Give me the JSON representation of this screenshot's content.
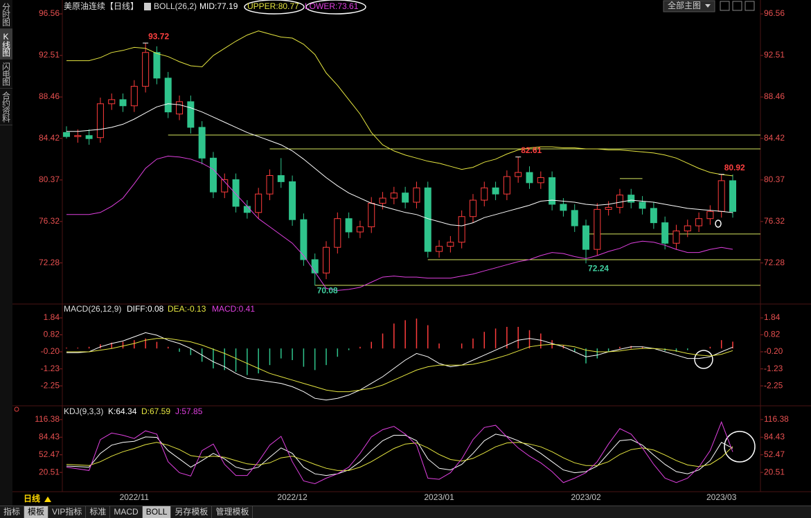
{
  "sidebar": {
    "items": [
      "分时图",
      "K线图",
      "闪电图",
      "合约资料"
    ],
    "selected": 1
  },
  "toolbar": {
    "main_menu": "全部主图"
  },
  "period": "日线",
  "tabs": {
    "items": [
      "指标",
      "模板",
      "VIP指标",
      "标准",
      "MACD",
      "BOLL",
      "另存模板",
      "管理模板"
    ],
    "selected": [
      1,
      5
    ]
  },
  "chart_data": [
    {
      "type": "candlestick",
      "title": "美原油连续【日线】",
      "indicator": "BOLL(26,2)",
      "categories": [
        null,
        null,
        null,
        null,
        null,
        null,
        "2022/11",
        null,
        null,
        null,
        null,
        null,
        null,
        null,
        null,
        null,
        null,
        null,
        null,
        null,
        "2022/12",
        null,
        null,
        null,
        null,
        null,
        null,
        null,
        null,
        null,
        null,
        null,
        null,
        "2023/01",
        null,
        null,
        null,
        null,
        null,
        null,
        null,
        null,
        null,
        null,
        null,
        null,
        "2023/02",
        null,
        null,
        null,
        null,
        null,
        null,
        null,
        null,
        null,
        null,
        null,
        "2023/03",
        null
      ],
      "open": [
        85.0,
        84.6,
        84.7,
        84.5,
        87.8,
        88.2,
        87.6,
        89.5,
        92.8,
        90.3,
        86.8,
        88.0,
        85.5,
        82.5,
        79.2,
        80.4,
        77.8,
        77.2,
        79.0,
        80.8,
        80.2,
        76.5,
        72.6,
        71.3,
        73.8,
        76.6,
        75.3,
        75.8,
        78.1,
        78.6,
        79.1,
        78.2,
        79.6,
        73.4,
        73.9,
        74.3,
        76.8,
        78.4,
        79.6,
        79.0,
        80.7,
        81.1,
        80.1,
        80.6,
        78.0,
        77.4,
        75.9,
        73.6,
        77.5,
        77.7,
        78.9,
        78.2,
        77.6,
        76.2,
        74.2,
        75.4,
        75.9,
        76.6,
        77.3,
        80.3
      ],
      "high": [
        85.6,
        85.3,
        85.3,
        88.4,
        88.8,
        88.8,
        90.1,
        93.72,
        93.4,
        90.9,
        88.6,
        88.6,
        86.1,
        83.1,
        81.0,
        81.0,
        78.4,
        79.6,
        81.4,
        82.5,
        80.8,
        77.1,
        73.2,
        74.4,
        77.2,
        77.2,
        76.4,
        78.7,
        79.2,
        79.7,
        79.7,
        80.2,
        80.2,
        74.5,
        74.9,
        77.4,
        79.0,
        80.2,
        80.2,
        81.3,
        82.61,
        81.7,
        81.2,
        81.2,
        78.6,
        78.0,
        76.5,
        78.1,
        78.3,
        79.5,
        79.5,
        78.8,
        78.2,
        76.8,
        76.0,
        76.5,
        77.2,
        77.9,
        80.92,
        80.9
      ],
      "low": [
        84.4,
        84.0,
        83.8,
        84.0,
        87.2,
        87.0,
        87.0,
        88.9,
        89.7,
        86.4,
        86.2,
        84.9,
        81.9,
        78.6,
        78.6,
        77.2,
        76.6,
        76.6,
        78.4,
        79.6,
        75.9,
        72.0,
        70.08,
        70.7,
        73.2,
        74.7,
        74.7,
        75.2,
        77.5,
        78.0,
        77.6,
        77.6,
        72.8,
        72.8,
        73.3,
        73.7,
        76.2,
        77.8,
        78.4,
        78.4,
        80.1,
        79.5,
        79.5,
        77.4,
        76.8,
        75.3,
        72.24,
        73.0,
        76.9,
        77.1,
        77.6,
        77.0,
        75.6,
        73.6,
        73.6,
        74.8,
        75.3,
        76.0,
        76.7,
        76.7
      ],
      "close": [
        84.6,
        84.7,
        84.4,
        87.8,
        88.2,
        87.6,
        89.5,
        92.8,
        90.3,
        87.0,
        88.0,
        85.5,
        82.5,
        79.2,
        80.4,
        77.8,
        77.2,
        79.0,
        80.8,
        80.2,
        76.5,
        72.6,
        71.3,
        73.8,
        76.6,
        75.3,
        75.8,
        78.1,
        78.6,
        79.1,
        78.2,
        79.6,
        73.4,
        73.9,
        74.3,
        76.8,
        78.4,
        79.6,
        79.0,
        80.7,
        81.1,
        80.1,
        80.6,
        78.0,
        77.4,
        75.9,
        73.6,
        77.5,
        77.7,
        78.9,
        78.2,
        77.6,
        76.2,
        74.2,
        75.4,
        75.9,
        76.6,
        77.3,
        80.3,
        77.3
      ],
      "up_color": "#ff3c3c",
      "down_color": "#2fc48c",
      "series": [
        {
          "name": "MID:",
          "color": "#ffffff",
          "values": [
            85.1,
            85.1,
            85.2,
            85.3,
            85.5,
            85.8,
            86.3,
            86.9,
            87.5,
            87.8,
            87.7,
            87.4,
            87.0,
            86.5,
            86.0,
            85.5,
            85.0,
            84.6,
            84.2,
            83.8,
            83.2,
            82.4,
            81.5,
            80.6,
            79.8,
            79.1,
            78.6,
            78.1,
            77.8,
            77.5,
            77.2,
            77.0,
            76.6,
            76.3,
            76.0,
            75.9,
            76.2,
            76.7,
            77.0,
            77.3,
            77.6,
            77.9,
            78.3,
            78.4,
            78.3,
            78.2,
            78.0,
            77.9,
            78.0,
            78.2,
            78.4,
            78.3,
            78.2,
            78.0,
            77.8,
            77.6,
            77.5,
            77.4,
            77.3,
            77.19
          ]
        },
        {
          "name": "UPPER:",
          "color": "#e6e640",
          "values": [
            92.0,
            92.0,
            92.0,
            92.3,
            92.8,
            93.0,
            93.3,
            93.2,
            92.7,
            92.4,
            91.9,
            91.5,
            91.4,
            92.5,
            93.2,
            93.9,
            94.5,
            94.9,
            94.6,
            94.3,
            94.2,
            93.6,
            92.6,
            90.8,
            89.6,
            88.2,
            86.8,
            85.0,
            83.8,
            83.2,
            82.8,
            82.5,
            82.2,
            82.0,
            81.7,
            81.4,
            81.6,
            82.1,
            82.4,
            82.9,
            83.3,
            83.5,
            83.6,
            83.6,
            83.5,
            83.5,
            83.4,
            83.4,
            83.3,
            83.3,
            83.2,
            83.1,
            83.0,
            82.8,
            82.5,
            82.0,
            81.5,
            81.1,
            80.9,
            80.77
          ]
        },
        {
          "name": "LOWER:",
          "color": "#e040e0",
          "values": [
            77.0,
            77.0,
            77.0,
            77.2,
            77.8,
            78.6,
            80.0,
            81.5,
            82.4,
            82.7,
            82.6,
            82.4,
            82.0,
            81.4,
            80.2,
            79.0,
            77.8,
            76.6,
            75.8,
            75.0,
            74.2,
            73.0,
            71.4,
            69.8,
            69.6,
            69.7,
            69.9,
            70.4,
            70.9,
            71.0,
            70.9,
            70.9,
            70.8,
            70.8,
            70.8,
            71.0,
            71.2,
            71.5,
            71.8,
            72.1,
            72.4,
            72.6,
            73.0,
            73.3,
            73.2,
            72.9,
            72.7,
            73.0,
            73.4,
            73.7,
            74.2,
            74.4,
            74.3,
            74.0,
            73.6,
            73.3,
            73.3,
            73.6,
            73.8,
            73.61
          ]
        }
      ],
      "levels": [
        {
          "value": 84.75,
          "from": 9
        },
        {
          "value": 83.4,
          "from": 18
        },
        {
          "value": 80.5,
          "from": 49,
          "to": 51
        },
        {
          "value": 75.1,
          "from": 46
        },
        {
          "value": 72.6,
          "from": 32
        },
        {
          "value": 70.1,
          "from": 22
        }
      ],
      "level_color": "#d8e860",
      "high_labels": [
        7,
        40,
        58
      ],
      "low_labels": [
        22,
        46
      ],
      "ylim": [
        68.41,
        97.24
      ],
      "yticks": [
        96.56,
        92.51,
        88.46,
        84.42,
        80.37,
        76.32,
        72.28
      ]
    },
    {
      "type": "macd",
      "indicator": "MACD(26,12,9)",
      "series": [
        {
          "name": "DIFF:",
          "color": "#ffffff",
          "values": [
            -0.25,
            -0.25,
            -0.2,
            0.1,
            0.3,
            0.45,
            0.7,
            0.95,
            0.8,
            0.5,
            0.3,
            0.0,
            -0.4,
            -0.8,
            -1.1,
            -1.5,
            -1.8,
            -1.9,
            -2.0,
            -2.1,
            -2.3,
            -2.6,
            -3.0,
            -3.1,
            -3.0,
            -2.8,
            -2.5,
            -2.1,
            -1.7,
            -1.2,
            -0.7,
            -0.3,
            -0.5,
            -0.9,
            -1.1,
            -1.0,
            -0.7,
            -0.4,
            -0.1,
            0.2,
            0.5,
            0.6,
            0.5,
            0.3,
            0.1,
            -0.2,
            -0.5,
            -0.4,
            -0.2,
            -0.05,
            0.1,
            0.1,
            0.0,
            -0.2,
            -0.4,
            -0.6,
            -0.6,
            -0.5,
            -0.2,
            0.08
          ]
        },
        {
          "name": "DEA:",
          "color": "#e6e640",
          "values": [
            -0.2,
            -0.2,
            -0.2,
            -0.1,
            0.0,
            0.15,
            0.3,
            0.5,
            0.6,
            0.6,
            0.5,
            0.4,
            0.2,
            -0.05,
            -0.3,
            -0.6,
            -0.9,
            -1.2,
            -1.5,
            -1.7,
            -1.9,
            -2.1,
            -2.3,
            -2.5,
            -2.6,
            -2.6,
            -2.5,
            -2.4,
            -2.2,
            -1.9,
            -1.6,
            -1.3,
            -1.1,
            -1.0,
            -1.0,
            -1.0,
            -0.95,
            -0.8,
            -0.6,
            -0.4,
            -0.15,
            0.1,
            0.2,
            0.25,
            0.2,
            0.1,
            -0.1,
            -0.2,
            -0.2,
            -0.15,
            -0.05,
            0.0,
            0.0,
            -0.05,
            -0.15,
            -0.3,
            -0.4,
            -0.45,
            -0.35,
            -0.13
          ]
        }
      ],
      "bars": {
        "name": "MACD:",
        "color": "#e040e0",
        "up_color": "#ff3c3c",
        "down_color": "#2fc48c",
        "values": [
          0.05,
          0.05,
          0.1,
          0.25,
          0.35,
          0.4,
          0.5,
          0.6,
          0.4,
          0.1,
          -0.2,
          -0.4,
          -0.8,
          -1.2,
          -1.3,
          -1.4,
          -1.6,
          -1.5,
          -1.0,
          -0.6,
          -0.7,
          -1.1,
          -1.3,
          -1.0,
          -0.5,
          -0.1,
          0.1,
          0.4,
          0.9,
          1.5,
          1.7,
          1.8,
          1.4,
          0.3,
          0.0,
          0.3,
          0.6,
          1.0,
          1.2,
          1.3,
          1.3,
          1.1,
          0.9,
          0.5,
          0.2,
          -0.2,
          -0.9,
          -0.6,
          -0.2,
          0.1,
          0.15,
          0.1,
          0.0,
          -0.15,
          -0.2,
          -0.1,
          0.0,
          0.1,
          0.5,
          0.41
        ]
      },
      "ylim": [
        -3.41,
        2.55
      ],
      "yticks": [
        1.84,
        0.82,
        {
          "value": -0.2,
          "label": "-0.20"
        },
        -1.23,
        -2.25
      ]
    },
    {
      "type": "line",
      "indicator": "KDJ(9,3,3)",
      "series": [
        {
          "name": "K:",
          "color": "#ffffff",
          "values": [
            32,
            31,
            30,
            55,
            70,
            75,
            77,
            85,
            84,
            60,
            45,
            30,
            42,
            55,
            45,
            30,
            25,
            30,
            48,
            65,
            55,
            30,
            18,
            15,
            18,
            25,
            40,
            60,
            78,
            88,
            88,
            78,
            45,
            28,
            25,
            35,
            55,
            78,
            90,
            86,
            78,
            68,
            55,
            40,
            25,
            20,
            22,
            32,
            55,
            78,
            80,
            70,
            52,
            35,
            22,
            18,
            25,
            42,
            75,
            64.34
          ]
        },
        {
          "name": "D:",
          "color": "#e6e640",
          "values": [
            35,
            34,
            33,
            40,
            50,
            58,
            64,
            71,
            75,
            70,
            62,
            51,
            48,
            50,
            48,
            42,
            36,
            34,
            38,
            47,
            50,
            43,
            35,
            28,
            24,
            24,
            30,
            40,
            52,
            64,
            72,
            74,
            65,
            53,
            44,
            41,
            46,
            56,
            67,
            74,
            75,
            72,
            67,
            58,
            47,
            38,
            33,
            33,
            40,
            53,
            62,
            65,
            61,
            52,
            42,
            34,
            31,
            35,
            48,
            67.59
          ]
        },
        {
          "name": "J:",
          "color": "#e040e0",
          "values": [
            30,
            27,
            24,
            80,
            92,
            88,
            82,
            96,
            90,
            40,
            20,
            14,
            60,
            72,
            35,
            15,
            15,
            40,
            70,
            86,
            40,
            5,
            0,
            10,
            18,
            30,
            55,
            85,
            98,
            104,
            90,
            70,
            10,
            8,
            20,
            45,
            80,
            102,
            106,
            85,
            65,
            50,
            38,
            22,
            2,
            10,
            20,
            40,
            72,
            100,
            90,
            65,
            35,
            10,
            2,
            10,
            30,
            60,
            112,
            57.85
          ]
        }
      ],
      "ylim": [
        -11.95,
        138.85
      ],
      "yticks": [
        116.38,
        84.43,
        52.47,
        20.51
      ]
    }
  ]
}
